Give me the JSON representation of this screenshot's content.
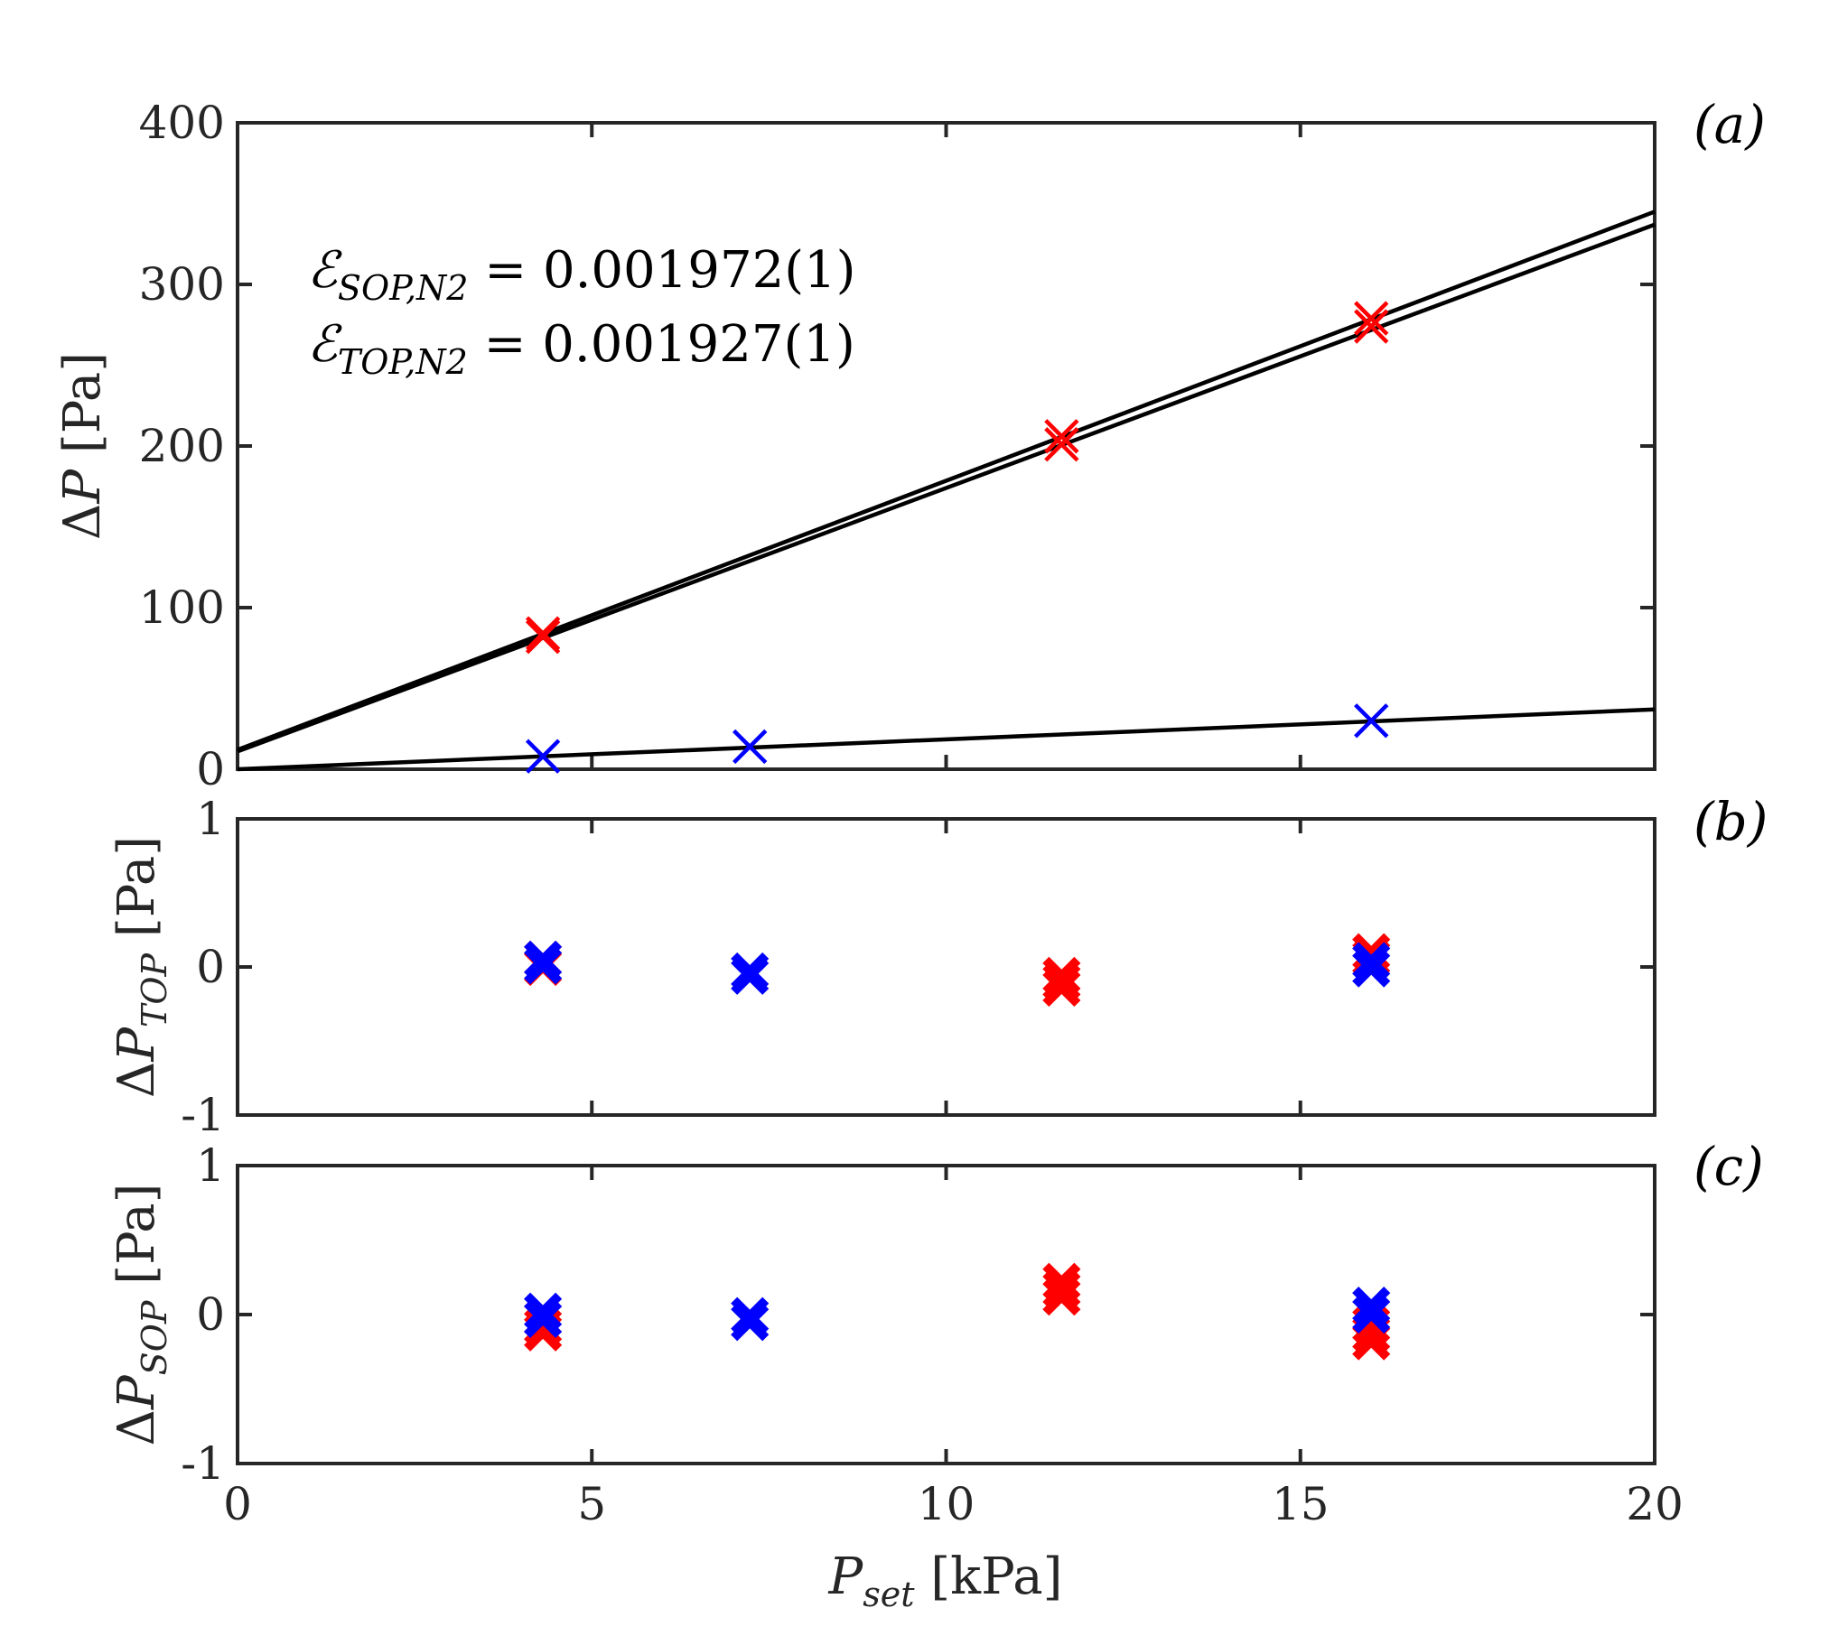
{
  "chart_data": [
    {
      "panel": "(a)",
      "type": "scatter",
      "xlabel": "P_set [kPa]",
      "ylabel": "ΔP [Pa]",
      "xlim": [
        0,
        20
      ],
      "ylim": [
        0,
        400
      ],
      "xticks": [
        0,
        5,
        10,
        15,
        20
      ],
      "yticks": [
        0,
        100,
        200,
        300,
        400
      ],
      "grid": false,
      "annotations": [
        {
          "symbol": "ℰ",
          "subscript": "SOP,N2",
          "text": "= 0.001972(1)"
        },
        {
          "symbol": "ℰ",
          "subscript": "TOP,N2",
          "text": "= 0.001927(1)"
        }
      ],
      "series": [
        {
          "name": "red markers",
          "color": "#ff0000",
          "marker": "x",
          "points": [
            [
              4.31,
              82
            ],
            [
              4.31,
              84
            ],
            [
              11.63,
              201
            ],
            [
              11.63,
              206
            ],
            [
              16.0,
              274
            ],
            [
              16.0,
              279
            ]
          ]
        },
        {
          "name": "blue markers",
          "color": "#0000ff",
          "marker": "x",
          "points": [
            [
              4.31,
              8
            ],
            [
              7.23,
              14
            ],
            [
              16.0,
              30
            ]
          ]
        }
      ],
      "lines": [
        {
          "name": "fit-upper-1",
          "color": "#000000",
          "x": [
            0,
            20
          ],
          "y": [
            12,
            345
          ]
        },
        {
          "name": "fit-upper-2",
          "color": "#000000",
          "x": [
            0,
            20
          ],
          "y": [
            11,
            337
          ]
        },
        {
          "name": "fit-lower",
          "color": "#000000",
          "x": [
            0,
            20
          ],
          "y": [
            0,
            37
          ]
        }
      ]
    },
    {
      "panel": "(b)",
      "type": "scatter",
      "ylabel": "ΔP_TOP [Pa]",
      "xlim": [
        0,
        20
      ],
      "ylim": [
        -1,
        1
      ],
      "yticks": [
        -1,
        0,
        1
      ],
      "grid": false,
      "series": [
        {
          "name": "red markers",
          "color": "#ff0000",
          "marker": "x-bold",
          "points": [
            [
              4.31,
              0.05
            ],
            [
              4.31,
              0.0
            ],
            [
              11.63,
              -0.06
            ],
            [
              11.63,
              -0.1
            ],
            [
              11.63,
              -0.14
            ],
            [
              16.0,
              0.1
            ],
            [
              16.0,
              0.06
            ]
          ]
        },
        {
          "name": "blue markers",
          "color": "#0000ff",
          "marker": "x-bold",
          "points": [
            [
              4.31,
              0.05
            ],
            [
              4.31,
              0.01
            ],
            [
              7.23,
              -0.03
            ],
            [
              7.23,
              -0.06
            ],
            [
              16.0,
              0.04
            ],
            [
              16.0,
              -0.01
            ]
          ]
        }
      ]
    },
    {
      "panel": "(c)",
      "type": "scatter",
      "xlabel": "P_set [kPa]",
      "ylabel": "ΔP_SOP [Pa]",
      "xlim": [
        0,
        20
      ],
      "ylim": [
        -1,
        1
      ],
      "xticks": [
        0,
        5,
        10,
        15,
        20
      ],
      "yticks": [
        -1,
        0,
        1
      ],
      "grid": false,
      "series": [
        {
          "name": "red markers",
          "color": "#ff0000",
          "marker": "x-bold",
          "points": [
            [
              4.31,
              -0.03
            ],
            [
              4.31,
              -0.08
            ],
            [
              4.31,
              -0.12
            ],
            [
              11.63,
              0.12
            ],
            [
              11.63,
              0.17
            ],
            [
              11.63,
              0.22
            ],
            [
              16.0,
              -0.07
            ],
            [
              16.0,
              -0.13
            ],
            [
              16.0,
              -0.18
            ]
          ]
        },
        {
          "name": "blue markers",
          "color": "#0000ff",
          "marker": "x-bold",
          "points": [
            [
              4.31,
              0.02
            ],
            [
              4.31,
              -0.03
            ],
            [
              7.23,
              -0.01
            ],
            [
              7.23,
              -0.05
            ],
            [
              16.0,
              0.06
            ],
            [
              16.0,
              0.0
            ]
          ]
        }
      ]
    }
  ],
  "labels": {
    "panel_a": "(a)",
    "panel_b": "(b)",
    "panel_c": "(c)",
    "ylabel_a_delta": "Δ",
    "ylabel_a_P": "P",
    "ylabel_a_unit": " [Pa]",
    "ylabel_b_delta": "Δ",
    "ylabel_b_P": "P",
    "ylabel_b_sub": "TOP",
    "ylabel_b_unit": " [Pa]",
    "ylabel_c_delta": "Δ",
    "ylabel_c_P": "P",
    "ylabel_c_sub": "SOP",
    "ylabel_c_unit": " [Pa]",
    "xlabel_P": "P",
    "xlabel_sub": "set",
    "xlabel_unit": " [kPa]",
    "annot1_symbol": "ℰ",
    "annot1_sub": "SOP,N2",
    "annot1_text": " = 0.001972(1)",
    "annot2_symbol": "ℰ",
    "annot2_sub": "TOP,N2",
    "annot2_text": " = 0.001927(1)"
  }
}
